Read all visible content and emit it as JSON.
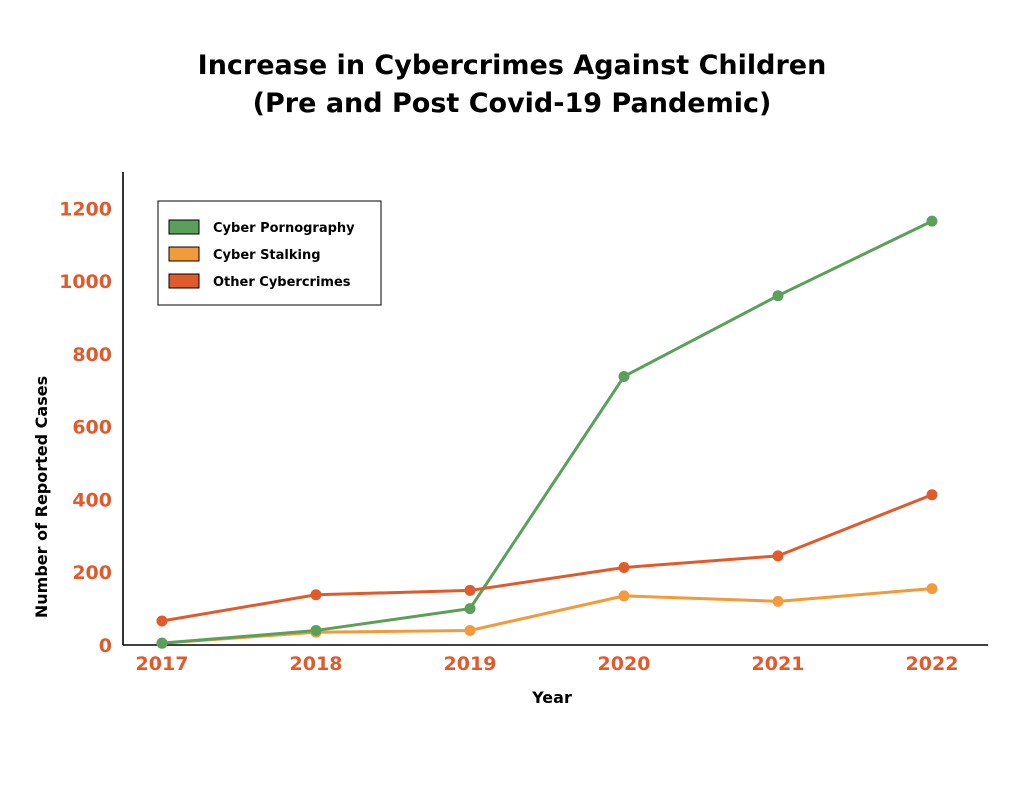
{
  "chart_data": {
    "type": "line",
    "title_line1": "Increase in Cybercrimes Against Children",
    "title_line2": "(Pre and Post Covid-19 Pandemic)",
    "xlabel": "Year",
    "ylabel": "Number of Reported Cases",
    "categories": [
      "2017",
      "2018",
      "2019",
      "2020",
      "2021",
      "2022"
    ],
    "ylim": [
      0,
      1300
    ],
    "yticks": [
      0,
      200,
      400,
      600,
      800,
      1000,
      1200
    ],
    "grid": false,
    "legend_position": "top-left",
    "series": [
      {
        "name": "Cyber Pornography",
        "color": "#5aa05a",
        "values": [
          5,
          40,
          100,
          738,
          960,
          1165
        ]
      },
      {
        "name": "Cyber Stalking",
        "color": "#f39a3a",
        "values": [
          5,
          35,
          40,
          135,
          120,
          155
        ]
      },
      {
        "name": "Other Cybercrimes",
        "color": "#e05a2b",
        "values": [
          66,
          138,
          150,
          213,
          245,
          413
        ]
      }
    ]
  }
}
